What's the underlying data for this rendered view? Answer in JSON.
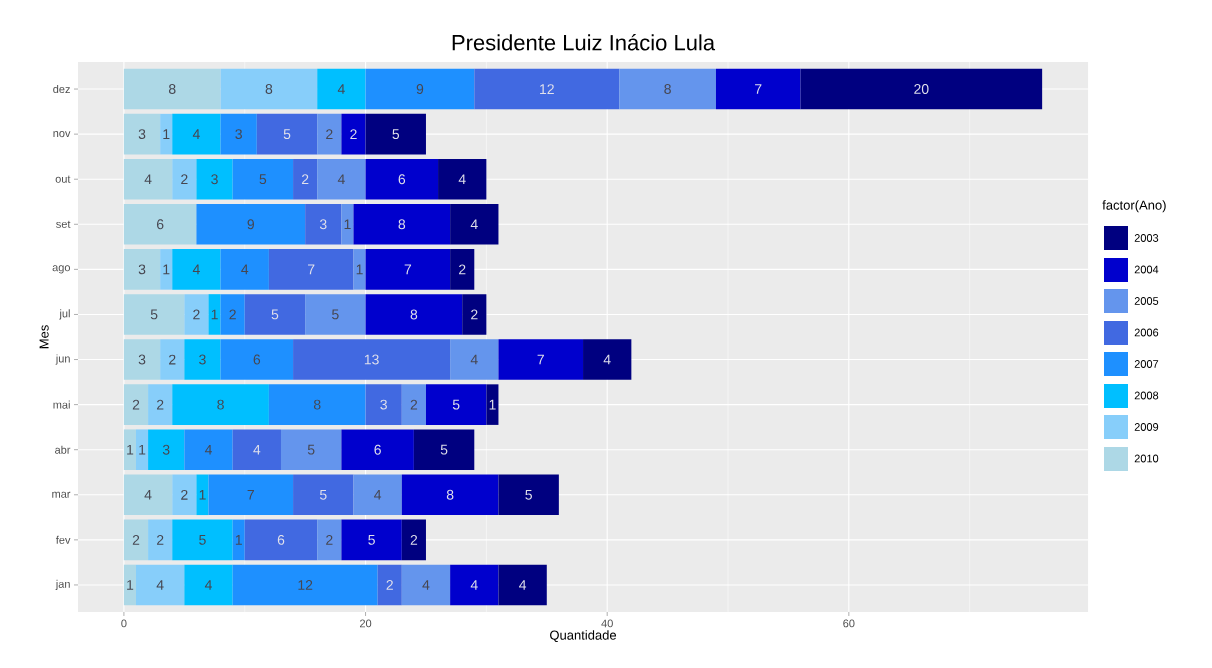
{
  "chart_data": {
    "type": "bar",
    "orientation": "horizontal",
    "stacked": true,
    "title": "Presidente  Luiz Inácio Lula",
    "xlabel": "Quantidade",
    "ylabel": "Mes",
    "legend_title": "factor(Ano)",
    "categories": [
      "dez",
      "nov",
      "out",
      "set",
      "ago",
      "jul",
      "jun",
      "mai",
      "abr",
      "mar",
      "fev",
      "jan"
    ],
    "series": [
      {
        "name": "2010",
        "color": "#add8e6",
        "values": [
          8,
          3,
          4,
          6,
          3,
          5,
          3,
          2,
          1,
          4,
          2,
          1
        ]
      },
      {
        "name": "2009",
        "color": "#87cefa",
        "values": [
          8,
          1,
          2,
          null,
          1,
          2,
          2,
          2,
          1,
          2,
          2,
          4
        ]
      },
      {
        "name": "2008",
        "color": "#00bfff",
        "values": [
          4,
          4,
          3,
          null,
          4,
          1,
          3,
          8,
          3,
          1,
          5,
          4
        ]
      },
      {
        "name": "2007",
        "color": "#1e90ff",
        "values": [
          9,
          3,
          5,
          9,
          4,
          2,
          6,
          8,
          4,
          7,
          1,
          12
        ]
      },
      {
        "name": "2006",
        "color": "#4169e1",
        "values": [
          12,
          5,
          2,
          3,
          7,
          5,
          13,
          3,
          4,
          5,
          6,
          2
        ]
      },
      {
        "name": "2005",
        "color": "#6495ed",
        "values": [
          8,
          2,
          4,
          1,
          1,
          5,
          4,
          2,
          5,
          4,
          2,
          4
        ]
      },
      {
        "name": "2004",
        "color": "#0000cd",
        "values": [
          7,
          2,
          6,
          8,
          7,
          8,
          7,
          5,
          6,
          8,
          5,
          4
        ]
      },
      {
        "name": "2003",
        "color": "#000080",
        "values": [
          20,
          5,
          4,
          4,
          2,
          2,
          4,
          1,
          5,
          5,
          2,
          4
        ]
      }
    ],
    "xlim": [
      -3.8,
      79.8
    ],
    "xticks": [
      0,
      20,
      40,
      60
    ],
    "grid": true,
    "legend": "right",
    "data_labels": true
  }
}
